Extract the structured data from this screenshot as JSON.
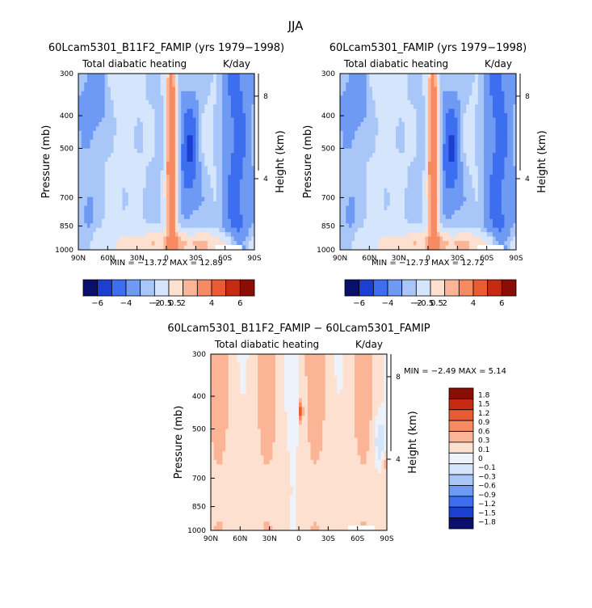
{
  "figure": {
    "title": "JJA"
  },
  "colors": {
    "palette11": [
      "#08106b",
      "#1d3fd1",
      "#3d6ef0",
      "#6f9af4",
      "#a8c6f8",
      "#d5e5fb",
      "#fde0cf",
      "#fbb596",
      "#f68a63",
      "#ea5a33",
      "#c62a12",
      "#8a0d06"
    ],
    "palette_diff": [
      "#08106b",
      "#1d3fd1",
      "#3d6ef0",
      "#6f9af4",
      "#a8c6f8",
      "#d5e5fb",
      "#eef3fb",
      "#fde0cf",
      "#fbb596",
      "#f68a63",
      "#ea5a33",
      "#c62a12",
      "#8a0d06"
    ],
    "missing": "#ffffff"
  },
  "panels": [
    {
      "id": "top-left",
      "title": "60Lcam5301_B11F2_FAMIP (yrs 1979−1998)",
      "left_label": "Total diabatic heating",
      "right_label": "K/day",
      "ylabel": "Pressure (mb)",
      "y2label": "Height (km)",
      "min_max": "MIN =  −13.72   MAX =   12.89",
      "variant": "full"
    },
    {
      "id": "top-right",
      "title": "60Lcam5301_FAMIP (yrs 1979−1998)",
      "left_label": "Total diabatic heating",
      "right_label": "K/day",
      "ylabel": "Pressure (mb)",
      "y2label": "Height (km)",
      "min_max": "MIN =  −12.73   MAX =   12.72",
      "variant": "full"
    },
    {
      "id": "bottom",
      "title": "60Lcam5301_B11F2_FAMIP − 60Lcam5301_FAMIP",
      "left_label": "Total diabatic heating",
      "right_label": "K/day",
      "ylabel": "Pressure (mb)",
      "y2label": "Height (km)",
      "min_max": "MIN =    −2.49    MAX =     5.14",
      "variant": "diff"
    }
  ],
  "colorbar_top": {
    "labels": [
      "−6",
      "−4",
      "−2",
      "−0.5",
      "0.5",
      "2",
      "4",
      "6"
    ]
  },
  "colorbar_diff": {
    "labels": [
      "1.8",
      "1.5",
      "1.2",
      "0.9",
      "0.6",
      "0.3",
      "0.1",
      "0",
      "−0.1",
      "−0.3",
      "−0.6",
      "−0.9",
      "−1.2",
      "−1.5",
      "−1.8"
    ]
  },
  "chart_data": [
    {
      "type": "heatmap",
      "title": "60Lcam5301_B11F2_FAMIP (yrs 1979−1998)",
      "subtitle": "Total diabatic heating",
      "units": "K/day",
      "xlabel": "",
      "ylabel": "Pressure (mb)",
      "y2label": "Height (km)",
      "x_ticks": [
        "90N",
        "60N",
        "30N",
        "0",
        "30S",
        "60S",
        "90S"
      ],
      "y_ticks": [
        300,
        400,
        500,
        700,
        850,
        1000
      ],
      "y2_ticks": [
        8,
        4
      ],
      "y_scale": "log",
      "min": -13.72,
      "max": 12.89,
      "contour_levels": [
        -6,
        -4,
        -2,
        -0.5,
        0.5,
        2,
        4,
        6
      ]
    },
    {
      "type": "heatmap",
      "title": "60Lcam5301_FAMIP (yrs 1979−1998)",
      "subtitle": "Total diabatic heating",
      "units": "K/day",
      "xlabel": "",
      "ylabel": "Pressure (mb)",
      "y2label": "Height (km)",
      "x_ticks": [
        "90N",
        "60N",
        "30N",
        "0",
        "30S",
        "60S",
        "90S"
      ],
      "y_ticks": [
        300,
        400,
        500,
        700,
        850,
        1000
      ],
      "y2_ticks": [
        8,
        4
      ],
      "y_scale": "log",
      "min": -12.73,
      "max": 12.72,
      "contour_levels": [
        -6,
        -4,
        -2,
        -0.5,
        0.5,
        2,
        4,
        6
      ]
    },
    {
      "type": "heatmap",
      "title": "60Lcam5301_B11F2_FAMIP − 60Lcam5301_FAMIP",
      "subtitle": "Total diabatic heating",
      "units": "K/day",
      "xlabel": "",
      "ylabel": "Pressure (mb)",
      "y2label": "Height (km)",
      "x_ticks": [
        "90N",
        "60N",
        "30N",
        "0",
        "30S",
        "60S",
        "90S"
      ],
      "y_ticks": [
        300,
        400,
        500,
        700,
        850,
        1000
      ],
      "y2_ticks": [
        8,
        4
      ],
      "y_scale": "log",
      "min": -2.49,
      "max": 5.14,
      "contour_levels": [
        -1.8,
        -1.5,
        -1.2,
        -0.9,
        -0.6,
        -0.3,
        -0.1,
        0,
        0.1,
        0.3,
        0.6,
        0.9,
        1.2,
        1.5,
        1.8
      ]
    }
  ]
}
